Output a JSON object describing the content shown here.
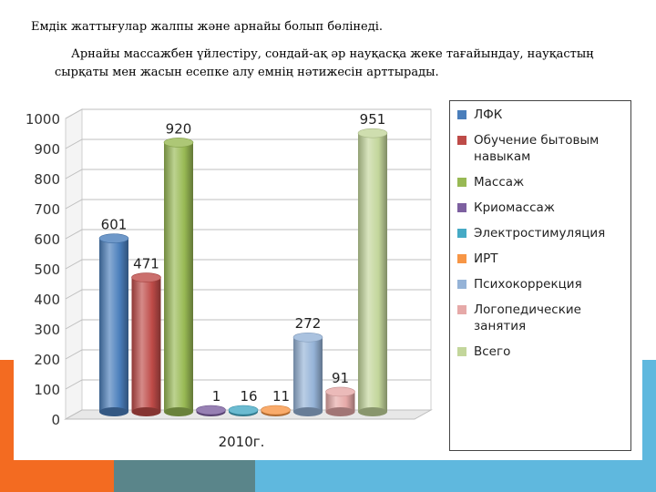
{
  "heading": "Емдік жаттығулар жалпы және арнайы болып бөлінеді.",
  "paragraph": "Арнайы массажбен үйлестіру, сондай-ақ әр науқасқа жеке тағайындау, науқастың сырқаты мен жасын есепке алу емнің нәтижесін арттырады.",
  "chart_data": {
    "type": "bar",
    "style": "3d-cylinder",
    "categories": [
      "2010г."
    ],
    "ylim": [
      0,
      1000
    ],
    "yticks": [
      0,
      100,
      200,
      300,
      400,
      500,
      600,
      700,
      800,
      900,
      1000
    ],
    "grid": true,
    "legend_position": "right",
    "series": [
      {
        "name": "ЛФК",
        "value": 601,
        "color": "#4a7ebb",
        "label": "601"
      },
      {
        "name": "Обучение бытовым навыкам",
        "value": 471,
        "color": "#be4b48",
        "label": "471"
      },
      {
        "name": "Массаж",
        "value": 920,
        "color": "#98b954",
        "label": "920"
      },
      {
        "name": "Криомассаж",
        "value": 1,
        "color": "#7d60a0",
        "label": "1"
      },
      {
        "name": "Электростимуляция",
        "value": 16,
        "color": "#46aac5",
        "label": "16"
      },
      {
        "name": "ИРТ",
        "value": 11,
        "color": "#f79646",
        "label": "11"
      },
      {
        "name": "Психокоррекция",
        "value": 272,
        "color": "#95b3d7",
        "label": "272"
      },
      {
        "name": "Логопедические занятия",
        "value": 91,
        "color": "#e6a9a8",
        "label": "91"
      },
      {
        "name": "Всего",
        "value": 951,
        "color": "#c3d69b",
        "label": "951"
      }
    ]
  }
}
